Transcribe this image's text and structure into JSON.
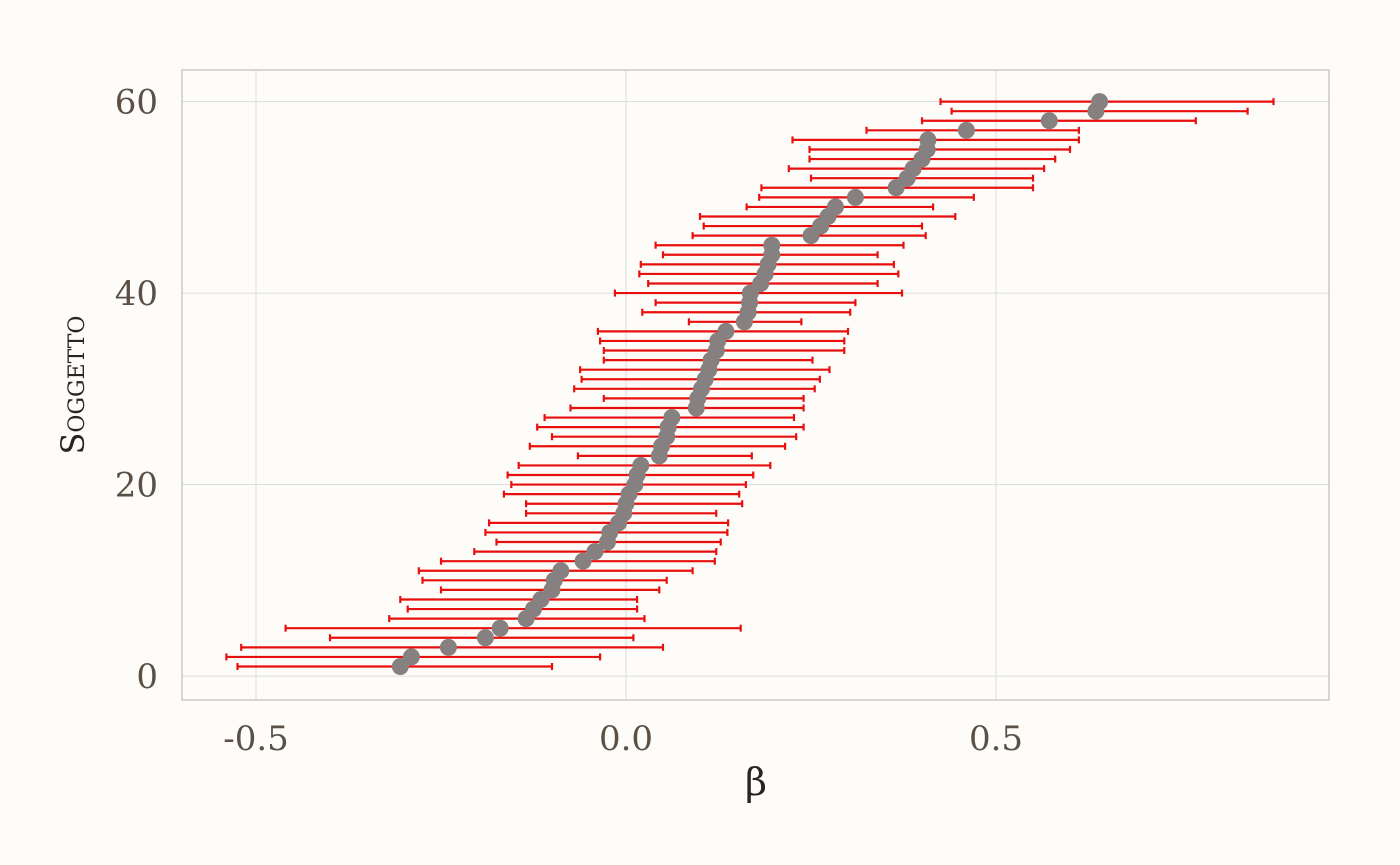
{
  "chart_data": {
    "type": "scatter",
    "xlabel": "β",
    "ylabel": "Soggetto",
    "xlim": [
      -0.6,
      0.95
    ],
    "ylim": [
      -2.5,
      63.3
    ],
    "xticks": [
      -0.5,
      0.0,
      0.5
    ],
    "xtick_labels": [
      "-0.5",
      "0.0",
      "0.5"
    ],
    "yticks": [
      0,
      20,
      40,
      60
    ],
    "ytick_labels": [
      "0",
      "20",
      "40",
      "60"
    ],
    "grid": true,
    "point_color": "#878080",
    "errorbar_color": "#e8100f",
    "series": [
      {
        "points": [
          {
            "y": 1,
            "x": -0.305,
            "lo": -0.525,
            "hi": -0.1
          },
          {
            "y": 2,
            "x": -0.29,
            "lo": -0.54,
            "hi": -0.035
          },
          {
            "y": 3,
            "x": -0.24,
            "lo": -0.52,
            "hi": 0.05
          },
          {
            "y": 4,
            "x": -0.19,
            "lo": -0.4,
            "hi": 0.01
          },
          {
            "y": 5,
            "x": -0.17,
            "lo": -0.46,
            "hi": 0.155
          },
          {
            "y": 6,
            "x": -0.135,
            "lo": -0.32,
            "hi": 0.025
          },
          {
            "y": 7,
            "x": -0.125,
            "lo": -0.295,
            "hi": 0.015
          },
          {
            "y": 8,
            "x": -0.115,
            "lo": -0.305,
            "hi": 0.015
          },
          {
            "y": 9,
            "x": -0.1,
            "lo": -0.25,
            "hi": 0.045
          },
          {
            "y": 10,
            "x": -0.097,
            "lo": -0.275,
            "hi": 0.055
          },
          {
            "y": 11,
            "x": -0.088,
            "lo": -0.28,
            "hi": 0.09
          },
          {
            "y": 12,
            "x": -0.058,
            "lo": -0.25,
            "hi": 0.12
          },
          {
            "y": 13,
            "x": -0.042,
            "lo": -0.205,
            "hi": 0.122
          },
          {
            "y": 14,
            "x": -0.025,
            "lo": -0.175,
            "hi": 0.128
          },
          {
            "y": 15,
            "x": -0.022,
            "lo": -0.19,
            "hi": 0.137
          },
          {
            "y": 16,
            "x": -0.01,
            "lo": -0.185,
            "hi": 0.138
          },
          {
            "y": 17,
            "x": -0.003,
            "lo": -0.135,
            "hi": 0.122
          },
          {
            "y": 18,
            "x": 0.0,
            "lo": -0.135,
            "hi": 0.157
          },
          {
            "y": 19,
            "x": 0.004,
            "lo": -0.165,
            "hi": 0.153
          },
          {
            "y": 20,
            "x": 0.012,
            "lo": -0.155,
            "hi": 0.162
          },
          {
            "y": 21,
            "x": 0.015,
            "lo": -0.16,
            "hi": 0.172
          },
          {
            "y": 22,
            "x": 0.02,
            "lo": -0.145,
            "hi": 0.195
          },
          {
            "y": 23,
            "x": 0.045,
            "lo": -0.065,
            "hi": 0.17
          },
          {
            "y": 24,
            "x": 0.048,
            "lo": -0.13,
            "hi": 0.215
          },
          {
            "y": 25,
            "x": 0.055,
            "lo": -0.1,
            "hi": 0.23
          },
          {
            "y": 26,
            "x": 0.057,
            "lo": -0.12,
            "hi": 0.24
          },
          {
            "y": 27,
            "x": 0.062,
            "lo": -0.11,
            "hi": 0.227
          },
          {
            "y": 28,
            "x": 0.095,
            "lo": -0.075,
            "hi": 0.24
          },
          {
            "y": 29,
            "x": 0.097,
            "lo": -0.03,
            "hi": 0.24
          },
          {
            "y": 30,
            "x": 0.102,
            "lo": -0.07,
            "hi": 0.255
          },
          {
            "y": 31,
            "x": 0.107,
            "lo": -0.06,
            "hi": 0.262
          },
          {
            "y": 32,
            "x": 0.112,
            "lo": -0.062,
            "hi": 0.275
          },
          {
            "y": 33,
            "x": 0.115,
            "lo": -0.03,
            "hi": 0.252
          },
          {
            "y": 34,
            "x": 0.122,
            "lo": -0.03,
            "hi": 0.295
          },
          {
            "y": 35,
            "x": 0.124,
            "lo": -0.035,
            "hi": 0.295
          },
          {
            "y": 36,
            "x": 0.135,
            "lo": -0.038,
            "hi": 0.3
          },
          {
            "y": 37,
            "x": 0.16,
            "lo": 0.085,
            "hi": 0.237
          },
          {
            "y": 38,
            "x": 0.165,
            "lo": 0.022,
            "hi": 0.303
          },
          {
            "y": 39,
            "x": 0.167,
            "lo": 0.04,
            "hi": 0.31
          },
          {
            "y": 40,
            "x": 0.168,
            "lo": -0.015,
            "hi": 0.373
          },
          {
            "y": 41,
            "x": 0.182,
            "lo": 0.03,
            "hi": 0.34
          },
          {
            "y": 42,
            "x": 0.188,
            "lo": 0.018,
            "hi": 0.368
          },
          {
            "y": 43,
            "x": 0.192,
            "lo": 0.02,
            "hi": 0.362
          },
          {
            "y": 44,
            "x": 0.197,
            "lo": 0.05,
            "hi": 0.34
          },
          {
            "y": 45,
            "x": 0.197,
            "lo": 0.04,
            "hi": 0.375
          },
          {
            "y": 46,
            "x": 0.25,
            "lo": 0.09,
            "hi": 0.405
          },
          {
            "y": 47,
            "x": 0.263,
            "lo": 0.105,
            "hi": 0.4
          },
          {
            "y": 48,
            "x": 0.273,
            "lo": 0.1,
            "hi": 0.445
          },
          {
            "y": 49,
            "x": 0.283,
            "lo": 0.163,
            "hi": 0.415
          },
          {
            "y": 50,
            "x": 0.31,
            "lo": 0.18,
            "hi": 0.47
          },
          {
            "y": 51,
            "x": 0.365,
            "lo": 0.183,
            "hi": 0.55
          },
          {
            "y": 52,
            "x": 0.38,
            "lo": 0.25,
            "hi": 0.55
          },
          {
            "y": 53,
            "x": 0.388,
            "lo": 0.22,
            "hi": 0.565
          },
          {
            "y": 54,
            "x": 0.4,
            "lo": 0.248,
            "hi": 0.58
          },
          {
            "y": 55,
            "x": 0.407,
            "lo": 0.248,
            "hi": 0.6
          },
          {
            "y": 56,
            "x": 0.408,
            "lo": 0.225,
            "hi": 0.612
          },
          {
            "y": 57,
            "x": 0.46,
            "lo": 0.325,
            "hi": 0.612
          },
          {
            "y": 58,
            "x": 0.572,
            "lo": 0.4,
            "hi": 0.77
          },
          {
            "y": 59,
            "x": 0.635,
            "lo": 0.44,
            "hi": 0.84
          },
          {
            "y": 60,
            "x": 0.64,
            "lo": 0.425,
            "hi": 0.875
          }
        ]
      }
    ]
  }
}
